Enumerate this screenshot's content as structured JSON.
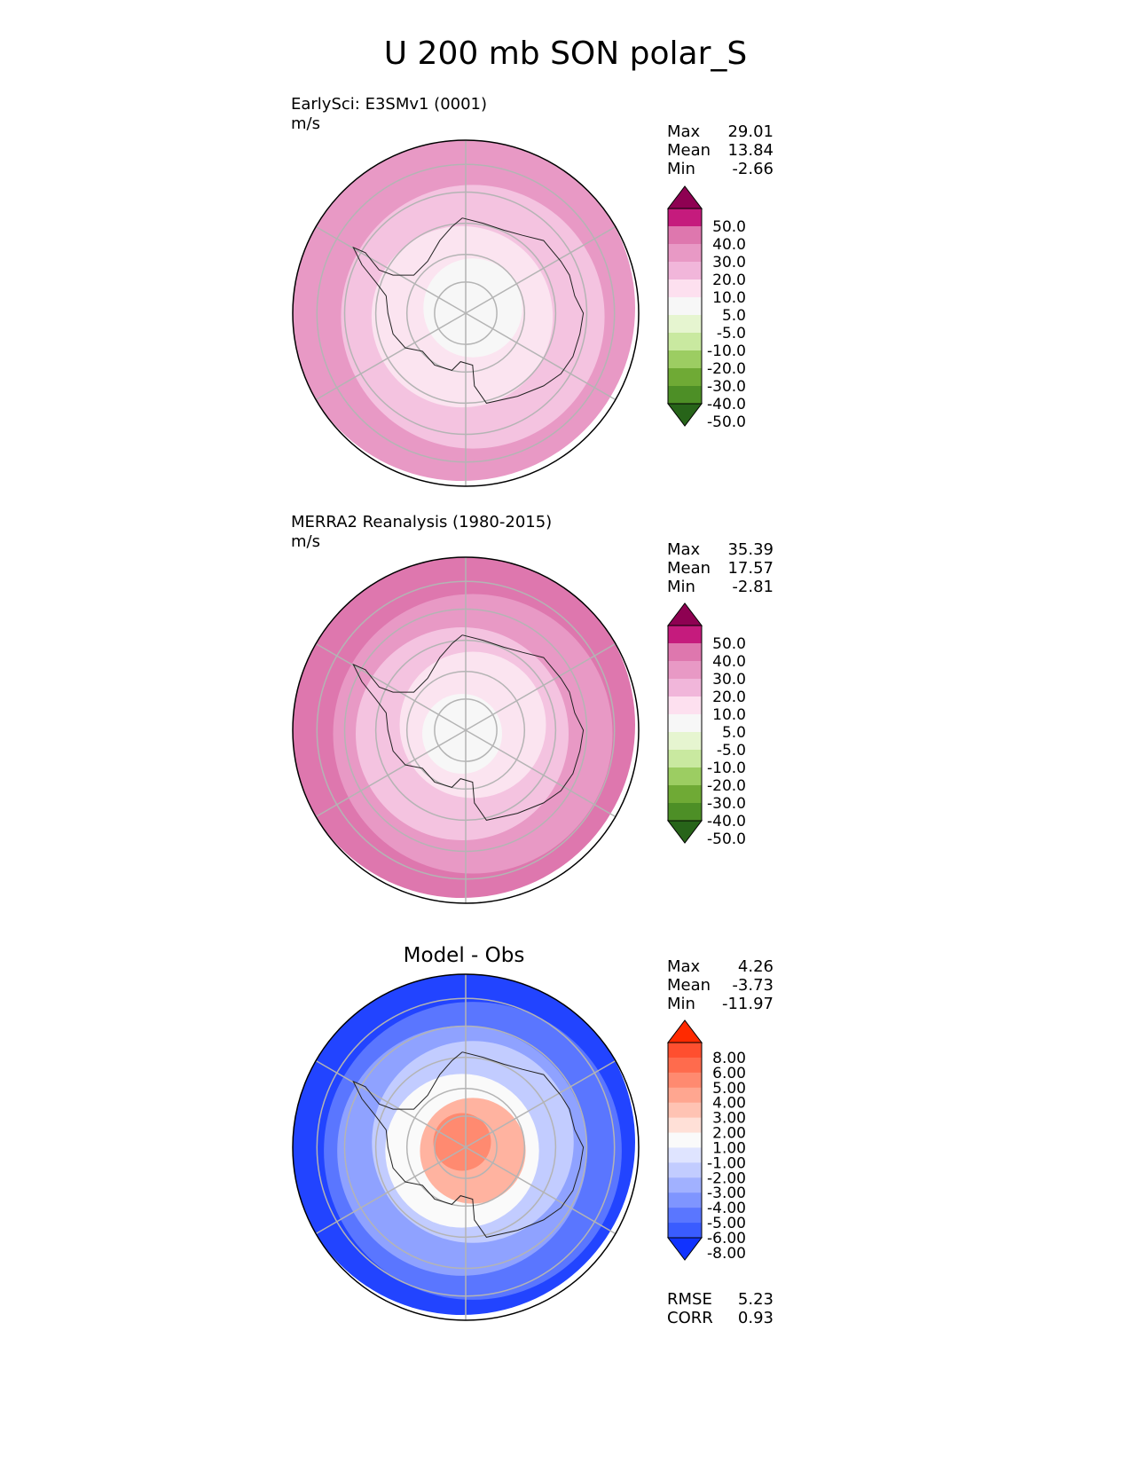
{
  "figure": {
    "title": "U 200 mb SON polar_S"
  },
  "chart_data": [
    {
      "type": "polar-contour",
      "projection": "south-polar-stereographic",
      "title": "EarlySci: E3SMv1 (0001)",
      "units": "m/s",
      "stats": {
        "max": "29.01",
        "mean": "13.84",
        "min": "-2.66"
      },
      "colorbar": {
        "levels": [
          "50.0",
          "40.0",
          "30.0",
          "20.0",
          "10.0",
          "5.0",
          "-5.0",
          "-10.0",
          "-20.0",
          "-30.0",
          "-40.0",
          "-50.0"
        ],
        "colors": [
          "#8e0152",
          "#c51b7d",
          "#de77ae",
          "#e899c5",
          "#f1b6da",
          "#fde0ef",
          "#f7f7f7",
          "#e6f5d0",
          "#c9e9a0",
          "#9ccd62",
          "#6faa35",
          "#4d8f26",
          "#276419"
        ]
      },
      "rings": [
        {
          "color": "#e899c5",
          "value": 25
        },
        {
          "color": "#f4c3e0",
          "value": 15
        },
        {
          "color": "#fbe4f0",
          "value": 7.5
        },
        {
          "color": "#f7f7f7",
          "value": 0
        }
      ]
    },
    {
      "type": "polar-contour",
      "projection": "south-polar-stereographic",
      "title": "MERRA2 Reanalysis (1980-2015)",
      "units": "m/s",
      "stats": {
        "max": "35.39",
        "mean": "17.57",
        "min": "-2.81"
      },
      "colorbar": {
        "levels": [
          "50.0",
          "40.0",
          "30.0",
          "20.0",
          "10.0",
          "5.0",
          "-5.0",
          "-10.0",
          "-20.0",
          "-30.0",
          "-40.0",
          "-50.0"
        ],
        "colors": [
          "#8e0152",
          "#c51b7d",
          "#de77ae",
          "#e899c5",
          "#f1b6da",
          "#fde0ef",
          "#f7f7f7",
          "#e6f5d0",
          "#c9e9a0",
          "#9ccd62",
          "#6faa35",
          "#4d8f26",
          "#276419"
        ]
      },
      "rings": [
        {
          "color": "#de77ae",
          "value": 35
        },
        {
          "color": "#e899c5",
          "value": 25
        },
        {
          "color": "#f4c3e0",
          "value": 15
        },
        {
          "color": "#fbe4f0",
          "value": 7.5
        },
        {
          "color": "#f7f7f7",
          "value": 0
        }
      ]
    },
    {
      "type": "polar-contour",
      "projection": "south-polar-stereographic",
      "title": "Model - Obs",
      "units": "",
      "stats": {
        "max": "4.26",
        "mean": "-3.73",
        "min": "-11.97"
      },
      "metrics": {
        "rmse_label": "RMSE",
        "rmse": "5.23",
        "corr_label": "CORR",
        "corr": "0.93"
      },
      "colorbar": {
        "levels": [
          "8.00",
          "6.00",
          "5.00",
          "4.00",
          "3.00",
          "2.00",
          "1.00",
          "-1.00",
          "-2.00",
          "-3.00",
          "-4.00",
          "-5.00",
          "-6.00",
          "-8.00"
        ],
        "colors": [
          "#ff2a00",
          "#ff4f2f",
          "#ff6b4d",
          "#ff8a70",
          "#ffa690",
          "#ffc3b3",
          "#ffe0d7",
          "#fafafa",
          "#dfe4ff",
          "#c2ccff",
          "#a1b1ff",
          "#7f95ff",
          "#5a76ff",
          "#3a5cff",
          "#1133ff"
        ]
      },
      "rings": [
        {
          "color": "#2244ff",
          "value": -7
        },
        {
          "color": "#5a76ff",
          "value": -5.5
        },
        {
          "color": "#8fa2ff",
          "value": -4.5
        },
        {
          "color": "#c2ccff",
          "value": -2.5
        },
        {
          "color": "#fafafa",
          "value": 0
        },
        {
          "color": "#ffb3a0",
          "value": 2.5
        },
        {
          "color": "#ff8a70",
          "value": 4
        }
      ]
    }
  ]
}
